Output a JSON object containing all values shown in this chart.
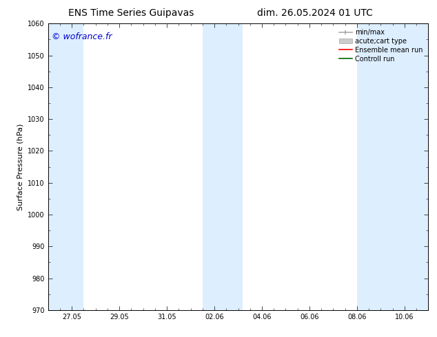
{
  "title_left": "ENS Time Series Guipavas",
  "title_right": "dim. 26.05.2024 01 UTC",
  "ylabel": "Surface Pressure (hPa)",
  "ylim": [
    970,
    1060
  ],
  "yticks": [
    970,
    980,
    990,
    1000,
    1010,
    1020,
    1030,
    1040,
    1050,
    1060
  ],
  "xtick_labels": [
    "27.05",
    "29.05",
    "31.05",
    "02.06",
    "04.06",
    "06.06",
    "08.06",
    "10.06"
  ],
  "xtick_positions_days": [
    1,
    3,
    5,
    7,
    9,
    11,
    13,
    15
  ],
  "xlim": [
    0,
    16
  ],
  "blue_bands": [
    {
      "start_day": -0.1,
      "end_day": 1.5
    },
    {
      "start_day": 6.5,
      "end_day": 8.2
    },
    {
      "start_day": 13.0,
      "end_day": 16.1
    }
  ],
  "band_color": "#ddeeff",
  "background_color": "#ffffff",
  "watermark": "© wofrance.fr",
  "watermark_color": "#0000cc",
  "legend_entries": [
    {
      "label": "min/max",
      "color": "#aaaaaa",
      "lw": 1.2
    },
    {
      "label": "acute;cart type",
      "color": "#cccccc",
      "lw": 5
    },
    {
      "label": "Ensemble mean run",
      "color": "#ff0000",
      "lw": 1.2
    },
    {
      "label": "Controll run",
      "color": "#006600",
      "lw": 1.2
    }
  ],
  "title_fontsize": 10,
  "tick_fontsize": 7,
  "ylabel_fontsize": 8,
  "legend_fontsize": 7,
  "watermark_fontsize": 9
}
